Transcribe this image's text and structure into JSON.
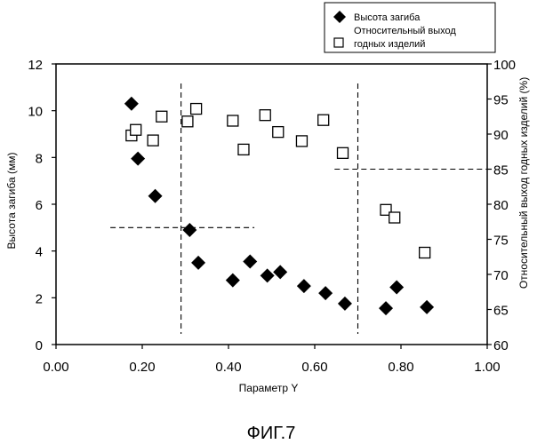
{
  "chart_data": {
    "type": "scatter",
    "caption": "ФИГ.7",
    "xlabel": "Параметр Y",
    "ylabel_left": "Высота загиба (мм)",
    "ylabel_right": "Относительный выход  годных изделий (%)",
    "xlim": [
      0.0,
      1.0
    ],
    "ylim_left": [
      0,
      12
    ],
    "ylim_right": [
      60,
      100
    ],
    "x_ticks": [
      "0.00",
      "0.20",
      "0.40",
      "0.60",
      "0.80",
      "1.00"
    ],
    "x_tick_values": [
      0.0,
      0.2,
      0.4,
      0.6,
      0.8,
      1.0
    ],
    "y_left_ticks": [
      0,
      2,
      4,
      6,
      8,
      10,
      12
    ],
    "y_right_ticks": [
      60,
      65,
      70,
      75,
      80,
      85,
      90,
      95,
      100
    ],
    "grid": false,
    "legend_position": "top-right",
    "legend": {
      "series1": "Высота загиба",
      "series2_line1": "Относительный выход",
      "series2_line2": "годных изделий"
    },
    "series": [
      {
        "name": "Высота загиба",
        "marker": "filled-diamond",
        "axis": "left",
        "points": [
          [
            0.175,
            10.3
          ],
          [
            0.19,
            7.95
          ],
          [
            0.23,
            6.35
          ],
          [
            0.31,
            4.9
          ],
          [
            0.33,
            3.5
          ],
          [
            0.41,
            2.75
          ],
          [
            0.45,
            3.55
          ],
          [
            0.49,
            2.95
          ],
          [
            0.52,
            3.1
          ],
          [
            0.575,
            2.5
          ],
          [
            0.625,
            2.2
          ],
          [
            0.67,
            1.75
          ],
          [
            0.765,
            1.55
          ],
          [
            0.79,
            2.45
          ],
          [
            0.86,
            1.6
          ]
        ]
      },
      {
        "name": "Относительный выход годных изделий",
        "marker": "open-square",
        "axis": "right",
        "points": [
          [
            0.175,
            89.8
          ],
          [
            0.185,
            90.6
          ],
          [
            0.225,
            89.1
          ],
          [
            0.245,
            92.5
          ],
          [
            0.305,
            91.8
          ],
          [
            0.325,
            93.6
          ],
          [
            0.41,
            91.9
          ],
          [
            0.435,
            87.8
          ],
          [
            0.485,
            92.7
          ],
          [
            0.515,
            90.3
          ],
          [
            0.57,
            89.0
          ],
          [
            0.62,
            92.0
          ],
          [
            0.665,
            87.3
          ],
          [
            0.765,
            79.2
          ],
          [
            0.785,
            78.1
          ],
          [
            0.855,
            73.1
          ]
        ]
      }
    ],
    "reference_lines": [
      {
        "orientation": "vertical",
        "x": 0.29,
        "style": "dashed"
      },
      {
        "orientation": "vertical",
        "x": 0.7,
        "style": "dashed"
      },
      {
        "orientation": "horizontal",
        "axis": "left",
        "y": 5.0,
        "x_range": [
          0.06,
          0.46
        ],
        "style": "dashed"
      },
      {
        "orientation": "horizontal",
        "axis": "right",
        "y": 85.0,
        "x_range": [
          0.58,
          1.0
        ],
        "style": "dashed"
      }
    ]
  }
}
